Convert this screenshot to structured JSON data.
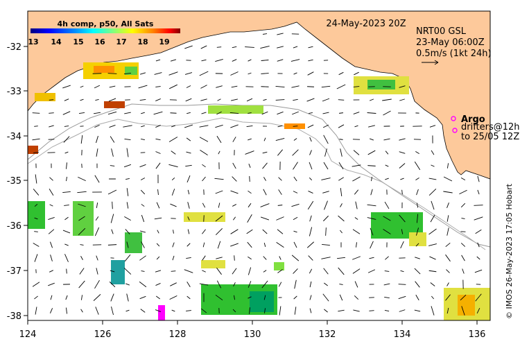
{
  "map": {
    "date_label": "24-May-2023 20Z",
    "model_label": "NRT00 GSL",
    "analysis_time": "23-May 06:00Z",
    "scale_label": "0.5m/s (1kt 24h)",
    "x_ticks": [
      "124",
      "126",
      "128",
      "130",
      "132",
      "134",
      "136"
    ],
    "y_ticks": [
      "-32",
      "-33",
      "-34",
      "-35",
      "-36",
      "-37",
      "-38"
    ],
    "credit": "© IMOS 26-May-2023 17:05 Hobart",
    "land_color": "#fdc99b",
    "sea_color": "#ffffff"
  },
  "colorbar": {
    "title": "4h comp, p50, All Sats",
    "ticks": [
      "13",
      "14",
      "15",
      "16",
      "17",
      "18",
      "19"
    ],
    "colors": [
      "#00007f",
      "#0000ff",
      "#0080ff",
      "#00ffff",
      "#80ff80",
      "#ffff00",
      "#ff8000",
      "#ff0000",
      "#800000"
    ]
  },
  "legend": {
    "argo_label": "Argo",
    "drifters_line1": "drifters@12h",
    "drifters_line2": "to 25/05 12Z",
    "argo_color": "#ff00ff"
  }
}
